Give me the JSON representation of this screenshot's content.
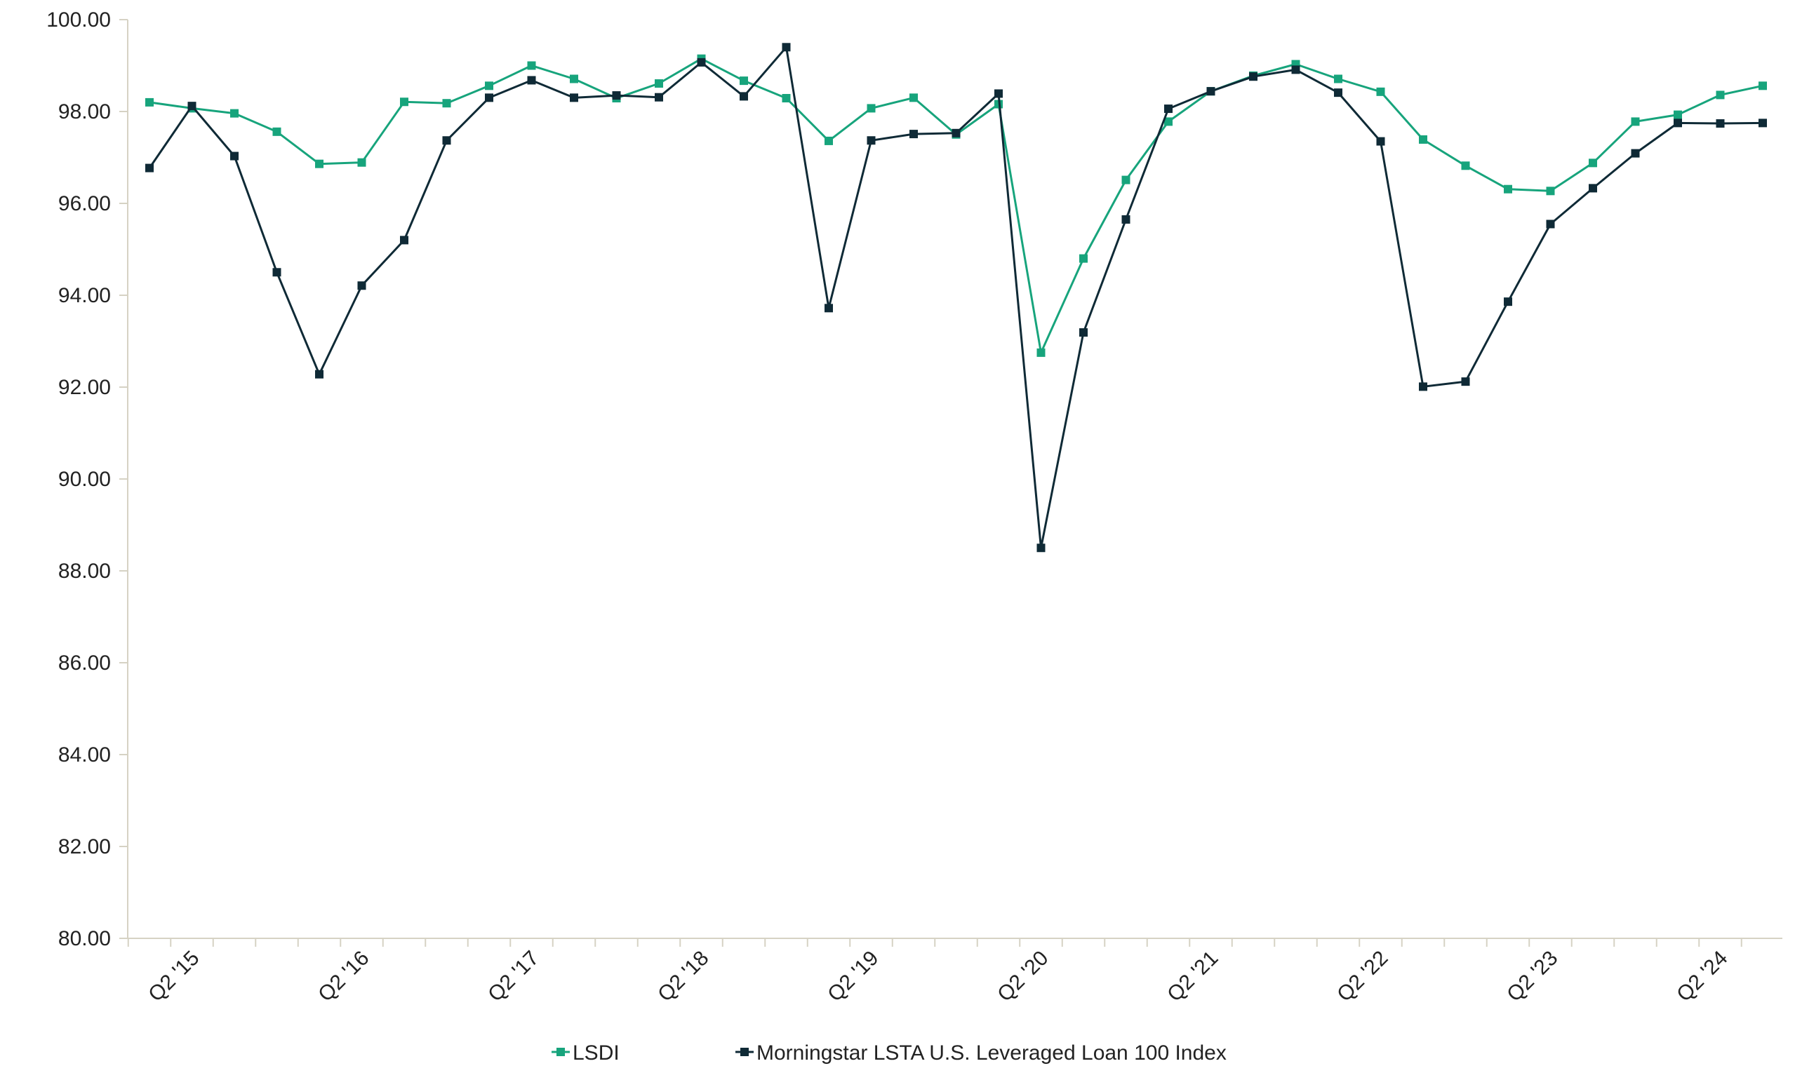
{
  "chart_data": {
    "type": "line",
    "title": "",
    "xlabel": "",
    "ylabel": "",
    "ylim": [
      80,
      100
    ],
    "y_ticks": [
      "100.00",
      "98.00",
      "96.00",
      "94.00",
      "92.00",
      "90.00",
      "88.00",
      "86.00",
      "84.00",
      "82.00",
      "80.00"
    ],
    "x_tick_labels": [
      "Q2 '15",
      "Q2 '16",
      "Q2 '17",
      "Q2 '18",
      "Q2 '19",
      "Q2 '20",
      "Q2 '21",
      "Q2 '22",
      "Q2 '23",
      "Q2 '24"
    ],
    "x_tick_label_indices": [
      1,
      5,
      9,
      13,
      17,
      21,
      25,
      29,
      33,
      37
    ],
    "grid": false,
    "legend_position": "bottom",
    "series": [
      {
        "name": "LSDI",
        "color": "#17a47c",
        "values": [
          98.2,
          98.07,
          97.96,
          97.56,
          96.86,
          96.89,
          98.21,
          98.18,
          98.56,
          99.0,
          98.71,
          98.29,
          98.61,
          99.15,
          98.67,
          98.29,
          97.36,
          98.07,
          98.3,
          97.5,
          98.16,
          92.75,
          94.8,
          96.51,
          97.78,
          98.44,
          98.78,
          99.03,
          98.71,
          98.43,
          97.39,
          96.82,
          96.31,
          96.27,
          96.88,
          97.78,
          97.93,
          98.36,
          98.56
        ]
      },
      {
        "name": "Morningstar LSTA U.S. Leveraged Loan 100 Index",
        "color": "#0f2a36",
        "values": [
          96.77,
          98.12,
          97.03,
          94.5,
          92.28,
          94.21,
          95.2,
          97.37,
          98.3,
          98.68,
          98.3,
          98.35,
          98.31,
          99.07,
          98.33,
          99.4,
          93.72,
          97.37,
          97.51,
          97.53,
          98.39,
          88.5,
          93.19,
          95.65,
          98.06,
          98.44,
          98.76,
          98.91,
          98.41,
          97.35,
          92.01,
          92.12,
          93.86,
          95.55,
          96.33,
          97.09,
          97.75,
          97.74,
          97.75
        ]
      }
    ]
  }
}
